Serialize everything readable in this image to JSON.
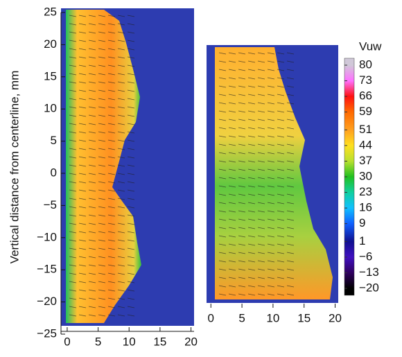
{
  "chart_data": [
    {
      "type": "heatmap",
      "ylabel": "Vertical distance from centerline, mm",
      "xlim": [
        -1,
        20.5
      ],
      "xticks": [
        0,
        5,
        10,
        15,
        20
      ],
      "ylim": [
        -25,
        25
      ],
      "yticks": [
        25,
        20,
        15,
        10,
        5,
        0,
        {
          "value": -5,
          "label": "−5"
        },
        {
          "value": -10,
          "label": "−10"
        },
        {
          "value": -15,
          "label": "−15"
        },
        {
          "value": -20,
          "label": "−20"
        },
        {
          "value": -25,
          "label": "−25"
        }
      ]
    },
    {
      "type": "heatmap",
      "xlim": [
        -0.7,
        20.5
      ],
      "xticks": [
        0,
        5,
        10,
        15,
        20
      ]
    },
    {
      "type": "colorbar",
      "title": "Vuw",
      "ticks": [
        80,
        73,
        66,
        59,
        51,
        44,
        37,
        30,
        23,
        16,
        9,
        1,
        {
          "value": -6,
          "label": "−6"
        },
        {
          "value": -13,
          "label": "−13"
        },
        {
          "value": -20,
          "label": "−20"
        }
      ],
      "colors": [
        "#d0c8d8",
        "#ff70ff",
        "#ff1010",
        "#ff6a00",
        "#ffa020",
        "#ffe020",
        "#b8e030",
        "#20c020",
        "#10d0a0",
        "#10c0ff",
        "#1060ff",
        "#101090",
        "#4010c0",
        "#300060",
        "#000000"
      ]
    }
  ]
}
